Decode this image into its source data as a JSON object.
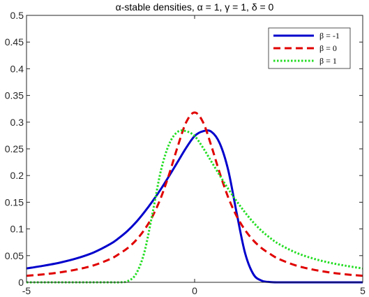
{
  "chart_data": {
    "type": "line",
    "title": "α-stable densities, α = 1, γ = 1, δ = 0",
    "xlabel": "",
    "ylabel": "",
    "xlim": [
      -5,
      5
    ],
    "ylim": [
      0,
      0.5
    ],
    "x_ticks": [
      -5,
      0,
      5
    ],
    "x_tick_labels": [
      "-5",
      "0",
      "5"
    ],
    "y_ticks": [
      0,
      0.05,
      0.1,
      0.15,
      0.2,
      0.25,
      0.3,
      0.35,
      0.4,
      0.45,
      0.5
    ],
    "y_tick_labels": [
      "0",
      "0.05",
      "0.1",
      "0.15",
      "0.2",
      "0.25",
      "0.3",
      "0.35",
      "0.4",
      "0.45",
      "0.5"
    ],
    "grid": false,
    "legend_position": "top-right",
    "x": [
      -5,
      -4.5,
      -4,
      -3.5,
      -3,
      -2.5,
      -2.25,
      -2,
      -1.75,
      -1.5,
      -1.25,
      -1,
      -0.75,
      -0.5,
      -0.25,
      0,
      0.25,
      0.5,
      0.75,
      1,
      1.25,
      1.5,
      1.75,
      2,
      2.25,
      2.5,
      3,
      3.5,
      4,
      4.5,
      5
    ],
    "series": [
      {
        "name": "β = -1",
        "color": "#0000cc",
        "dash": "solid",
        "values": [
          0.026,
          0.031,
          0.037,
          0.045,
          0.056,
          0.072,
          0.083,
          0.096,
          0.112,
          0.131,
          0.152,
          0.175,
          0.2,
          0.226,
          0.252,
          0.274,
          0.283,
          0.282,
          0.26,
          0.21,
          0.13,
          0.055,
          0.015,
          0.003,
          0.0005,
          0,
          0,
          0,
          0,
          0,
          0
        ]
      },
      {
        "name": "β = 0",
        "color": "#e00000",
        "dash": "dashed",
        "values": [
          0.0122,
          0.0149,
          0.0187,
          0.0241,
          0.0318,
          0.0439,
          0.053,
          0.0637,
          0.0783,
          0.0979,
          0.124,
          0.159,
          0.204,
          0.255,
          0.3,
          0.318,
          0.3,
          0.255,
          0.204,
          0.159,
          0.124,
          0.0979,
          0.0783,
          0.0637,
          0.053,
          0.0439,
          0.0318,
          0.0241,
          0.0187,
          0.0149,
          0.0122
        ]
      },
      {
        "name": "β = 1",
        "color": "#22dd22",
        "dash": "dotted",
        "values": [
          0,
          0,
          0,
          0,
          0,
          0,
          0,
          0.002,
          0.015,
          0.055,
          0.13,
          0.21,
          0.26,
          0.282,
          0.283,
          0.274,
          0.252,
          0.226,
          0.2,
          0.175,
          0.152,
          0.131,
          0.112,
          0.096,
          0.083,
          0.072,
          0.056,
          0.045,
          0.037,
          0.031,
          0.026
        ]
      }
    ]
  }
}
